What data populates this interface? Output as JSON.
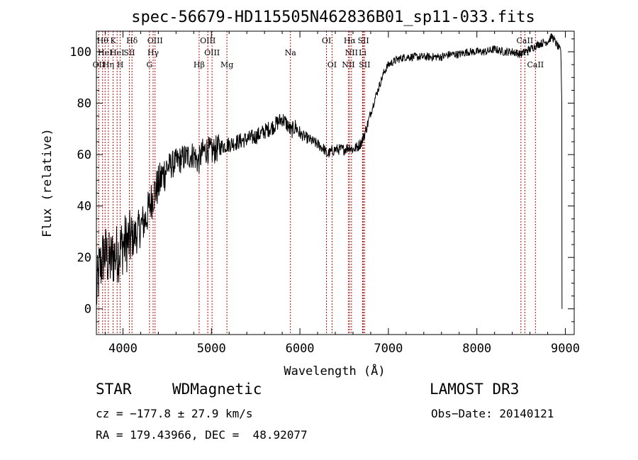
{
  "chart_data": {
    "type": "line",
    "title": "spec-56679-HD115505N462836B01_sp11-033.fits",
    "xlabel": "Wavelength (Å)",
    "ylabel": "Flux (relative)",
    "xlim": [
      3700,
      9100
    ],
    "ylim": [
      -10,
      108
    ],
    "x_ticks": [
      4000,
      5000,
      6000,
      7000,
      8000,
      9000
    ],
    "y_ticks": [
      0,
      20,
      40,
      60,
      80,
      100
    ],
    "series": [
      {
        "name": "spectrum",
        "points": [
          [
            3700,
            5
          ],
          [
            3730,
            15
          ],
          [
            3760,
            18
          ],
          [
            3790,
            22
          ],
          [
            3820,
            20
          ],
          [
            3850,
            18
          ],
          [
            3880,
            20
          ],
          [
            3910,
            21
          ],
          [
            3950,
            22
          ],
          [
            4000,
            25
          ],
          [
            4050,
            26
          ],
          [
            4100,
            27
          ],
          [
            4150,
            29
          ],
          [
            4200,
            32
          ],
          [
            4260,
            35
          ],
          [
            4300,
            40
          ],
          [
            4350,
            45
          ],
          [
            4400,
            48
          ],
          [
            4450,
            52
          ],
          [
            4500,
            55
          ],
          [
            4600,
            57
          ],
          [
            4700,
            59
          ],
          [
            4800,
            60
          ],
          [
            4850,
            57
          ],
          [
            4900,
            61
          ],
          [
            4950,
            62
          ],
          [
            5000,
            61
          ],
          [
            5100,
            63
          ],
          [
            5200,
            64
          ],
          [
            5300,
            65
          ],
          [
            5400,
            66
          ],
          [
            5500,
            67
          ],
          [
            5600,
            69
          ],
          [
            5700,
            71
          ],
          [
            5800,
            74
          ],
          [
            5850,
            72
          ],
          [
            5900,
            69
          ],
          [
            5950,
            71
          ],
          [
            6000,
            68
          ],
          [
            6100,
            66
          ],
          [
            6200,
            64
          ],
          [
            6280,
            62
          ],
          [
            6300,
            60
          ],
          [
            6350,
            61
          ],
          [
            6400,
            62
          ],
          [
            6500,
            62
          ],
          [
            6560,
            63
          ],
          [
            6600,
            62
          ],
          [
            6650,
            63
          ],
          [
            6700,
            65
          ],
          [
            6750,
            70
          ],
          [
            6800,
            76
          ],
          [
            6850,
            82
          ],
          [
            6900,
            87
          ],
          [
            6950,
            92
          ],
          [
            7000,
            95
          ],
          [
            7100,
            97
          ],
          [
            7200,
            98
          ],
          [
            7300,
            98
          ],
          [
            7400,
            98
          ],
          [
            7500,
            98
          ],
          [
            7600,
            98
          ],
          [
            7700,
            99
          ],
          [
            7800,
            99
          ],
          [
            7900,
            100
          ],
          [
            8000,
            100
          ],
          [
            8100,
            100
          ],
          [
            8200,
            101
          ],
          [
            8300,
            100
          ],
          [
            8400,
            100
          ],
          [
            8498,
            99
          ],
          [
            8542,
            100
          ],
          [
            8600,
            101
          ],
          [
            8700,
            103
          ],
          [
            8800,
            104
          ],
          [
            8850,
            106
          ],
          [
            8900,
            103
          ],
          [
            8950,
            100
          ],
          [
            8960,
            80
          ],
          [
            8962,
            0
          ]
        ]
      }
    ],
    "spectral_lines": [
      {
        "wavelength": 3727,
        "label": "OII",
        "row": 3
      },
      {
        "wavelength": 3770,
        "label": "Hθ",
        "row": 1
      },
      {
        "wavelength": 3798,
        "label": "HeI",
        "row": 2
      },
      {
        "wavelength": 3835,
        "label": "Hη",
        "row": 3
      },
      {
        "wavelength": 3889,
        "label": "K",
        "row": 1
      },
      {
        "wavelength": 3934,
        "label": "HeI",
        "row": 2
      },
      {
        "wavelength": 3969,
        "label": "H",
        "row": 3
      },
      {
        "wavelength": 4072,
        "label": "SII",
        "row": 2
      },
      {
        "wavelength": 4102,
        "label": "Hδ",
        "row": 1
      },
      {
        "wavelength": 4300,
        "label": "G",
        "row": 3
      },
      {
        "wavelength": 4341,
        "label": "Hγ",
        "row": 2
      },
      {
        "wavelength": 4363,
        "label": "OIII",
        "row": 1
      },
      {
        "wavelength": 4861,
        "label": "Hβ",
        "row": 3
      },
      {
        "wavelength": 4959,
        "label": "OIII",
        "row": 1
      },
      {
        "wavelength": 5007,
        "label": "OIII",
        "row": 2
      },
      {
        "wavelength": 5175,
        "label": "Mg",
        "row": 3
      },
      {
        "wavelength": 5893,
        "label": "Na",
        "row": 2
      },
      {
        "wavelength": 6300,
        "label": "OI",
        "row": 1
      },
      {
        "wavelength": 6363,
        "label": "OI",
        "row": 3
      },
      {
        "wavelength": 6548,
        "label": "NII",
        "row": 3
      },
      {
        "wavelength": 6563,
        "label": "Hα",
        "row": 1
      },
      {
        "wavelength": 6583,
        "label": "NII",
        "row": 2
      },
      {
        "wavelength": 6708,
        "label": "Li",
        "row": 2
      },
      {
        "wavelength": 6717,
        "label": "SII",
        "row": 1
      },
      {
        "wavelength": 6731,
        "label": "SII",
        "row": 3
      },
      {
        "wavelength": 8498,
        "label": "CaII",
        "row": 2
      },
      {
        "wavelength": 8542,
        "label": "CaII",
        "row": 1
      },
      {
        "wavelength": 8662,
        "label": "CaII",
        "row": 3
      }
    ]
  },
  "info": {
    "class": "STAR",
    "subclass": "WDMagnetic",
    "survey": "LAMOST DR3",
    "cz": "cz = −177.8 ± 27.9 km/s",
    "obs_date": "Obs−Date: 20140121",
    "radec": "RA = 179.43966, DEC =  48.92077"
  },
  "colors": {
    "line_marker": "#cc0000",
    "spectrum": "#000000",
    "background": "#ffffff"
  }
}
